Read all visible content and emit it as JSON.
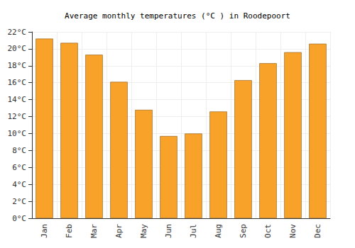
{
  "chart_data": {
    "type": "bar",
    "title": "Average monthly temperatures (°C ) in Roodepoort",
    "categories": [
      "Jan",
      "Feb",
      "Mar",
      "Apr",
      "May",
      "Jun",
      "Jul",
      "Aug",
      "Sep",
      "Oct",
      "Nov",
      "Dec"
    ],
    "values": [
      21.2,
      20.7,
      19.3,
      16.1,
      12.8,
      9.7,
      10.0,
      12.6,
      16.3,
      18.3,
      19.6,
      20.6
    ],
    "color": "#f9a22a",
    "ylim": [
      0,
      22
    ],
    "yticks": [
      {
        "value": 0,
        "label": "0°C"
      },
      {
        "value": 2,
        "label": "2°C"
      },
      {
        "value": 4,
        "label": "4°C"
      },
      {
        "value": 6,
        "label": "6°C"
      },
      {
        "value": 8,
        "label": "8°C"
      },
      {
        "value": 10,
        "label": "10°C"
      },
      {
        "value": 12,
        "label": "12°C"
      },
      {
        "value": 14,
        "label": "14°C"
      },
      {
        "value": 16,
        "label": "16°C"
      },
      {
        "value": 18,
        "label": "18°C"
      },
      {
        "value": 20,
        "label": "20°C"
      },
      {
        "value": 22,
        "label": "22°C"
      }
    ],
    "grid": true
  }
}
